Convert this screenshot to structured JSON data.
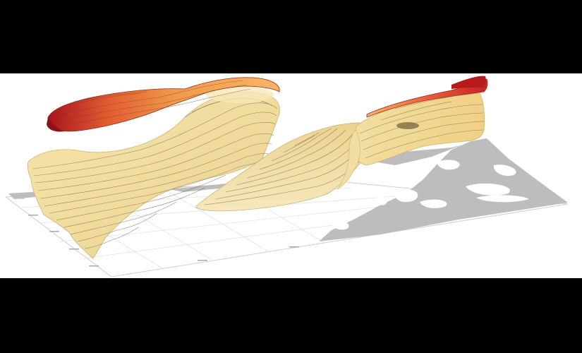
{
  "figure": {
    "background_color": "#ffffff",
    "letterbox_color": "#000000",
    "surface_palette": {
      "base": "#f3e6b0",
      "mid": "#f2c57a",
      "warm": "#f0994a",
      "hot": "#d8402a",
      "deep": "#a8141e",
      "contour": "#6f6a52"
    },
    "land_color": "#bdbdbd",
    "grid_color": "#d9d9d9"
  }
}
